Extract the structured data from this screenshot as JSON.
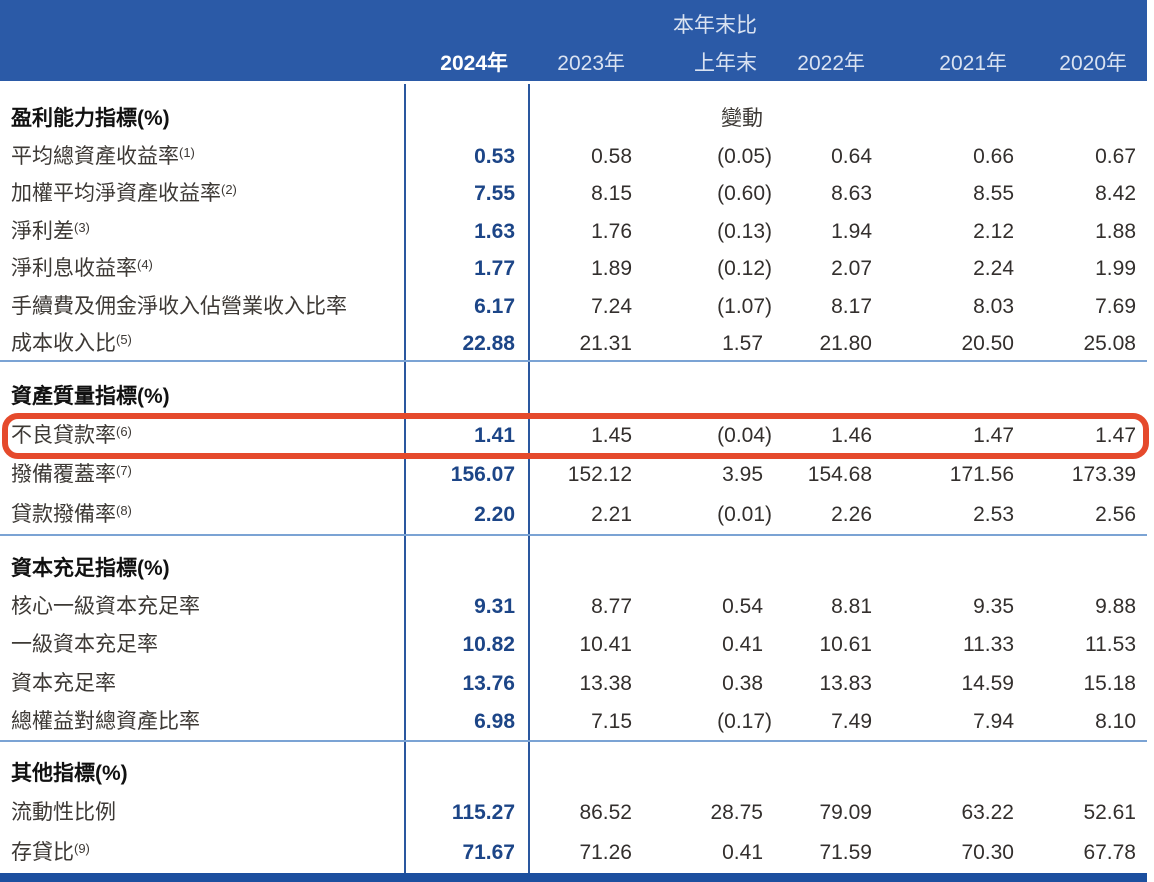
{
  "table": {
    "change_header_top": "本年末比",
    "columns": [
      {
        "id": "y2024",
        "label": "2024年",
        "emphasized": true
      },
      {
        "id": "y2023",
        "label": "2023年"
      },
      {
        "id": "change",
        "label": "上年末",
        "label_top": "本年末比"
      },
      {
        "id": "y2022",
        "label": "2022年"
      },
      {
        "id": "y2021",
        "label": "2021年"
      },
      {
        "id": "y2020",
        "label": "2020年"
      }
    ],
    "sections": [
      {
        "id": "profitability",
        "header": "盈利能力指標(%)",
        "change_note": "變動",
        "rows": [
          {
            "label": "平均總資產收益率",
            "sup": "(1)",
            "values": [
              "0.53",
              "0.58",
              "(0.05)",
              "0.64",
              "0.66",
              "0.67"
            ]
          },
          {
            "label": "加權平均淨資產收益率",
            "sup": "(2)",
            "values": [
              "7.55",
              "8.15",
              "(0.60)",
              "8.63",
              "8.55",
              "8.42"
            ]
          },
          {
            "label": "淨利差",
            "sup": "(3)",
            "values": [
              "1.63",
              "1.76",
              "(0.13)",
              "1.94",
              "2.12",
              "1.88"
            ]
          },
          {
            "label": "淨利息收益率",
            "sup": "(4)",
            "values": [
              "1.77",
              "1.89",
              "(0.12)",
              "2.07",
              "2.24",
              "1.99"
            ]
          },
          {
            "label": "手續費及佣金淨收入佔營業收入比率",
            "sup": "",
            "values": [
              "6.17",
              "7.24",
              "(1.07)",
              "8.17",
              "8.03",
              "7.69"
            ]
          },
          {
            "label": "成本收入比",
            "sup": "(5)",
            "values": [
              "22.88",
              "21.31",
              "1.57",
              "21.80",
              "20.50",
              "25.08"
            ]
          }
        ]
      },
      {
        "id": "asset-quality",
        "header": "資產質量指標(%)",
        "change_note": "",
        "rows": [
          {
            "label": "不良貸款率",
            "sup": "(6)",
            "highlighted": true,
            "values": [
              "1.41",
              "1.45",
              "(0.04)",
              "1.46",
              "1.47",
              "1.47"
            ]
          },
          {
            "label": "撥備覆蓋率",
            "sup": "(7)",
            "values": [
              "156.07",
              "152.12",
              "3.95",
              "154.68",
              "171.56",
              "173.39"
            ]
          },
          {
            "label": "貸款撥備率",
            "sup": "(8)",
            "values": [
              "2.20",
              "2.21",
              "(0.01)",
              "2.26",
              "2.53",
              "2.56"
            ]
          }
        ]
      },
      {
        "id": "capital-adequacy",
        "header": "資本充足指標(%)",
        "change_note": "",
        "rows": [
          {
            "label": "核心一級資本充足率",
            "sup": "",
            "values": [
              "9.31",
              "8.77",
              "0.54",
              "8.81",
              "9.35",
              "9.88"
            ]
          },
          {
            "label": "一級資本充足率",
            "sup": "",
            "values": [
              "10.82",
              "10.41",
              "0.41",
              "10.61",
              "11.33",
              "11.53"
            ]
          },
          {
            "label": "資本充足率",
            "sup": "",
            "values": [
              "13.76",
              "13.38",
              "0.38",
              "13.83",
              "14.59",
              "15.18"
            ]
          },
          {
            "label": "總權益對總資產比率",
            "sup": "",
            "values": [
              "6.98",
              "7.15",
              "(0.17)",
              "7.49",
              "7.94",
              "8.10"
            ]
          }
        ]
      },
      {
        "id": "other",
        "header": "其他指標(%)",
        "change_note": "",
        "rows": [
          {
            "label": "流動性比例",
            "sup": "",
            "values": [
              "115.27",
              "86.52",
              "28.75",
              "79.09",
              "63.22",
              "52.61"
            ]
          },
          {
            "label": "存貸比",
            "sup": "(9)",
            "values": [
              "71.67",
              "71.26",
              "0.41",
              "71.59",
              "70.30",
              "67.78"
            ]
          }
        ]
      }
    ]
  },
  "annotation": {
    "highlighted_row": "不良貸款率(6)",
    "shape": "rounded-rectangle-outline"
  },
  "colors": {
    "header_bar_blue": "#2b5aa7",
    "bottom_bar_blue": "#1c4f9f",
    "column_line_blue": "#2a579f",
    "section_divider_blue": "#7ba3d4",
    "emphasized_value_navy": "#1c4587",
    "highlight_red": "#e54a2c",
    "header_text": "#d9e2f1",
    "body_text": "#332f2d"
  }
}
